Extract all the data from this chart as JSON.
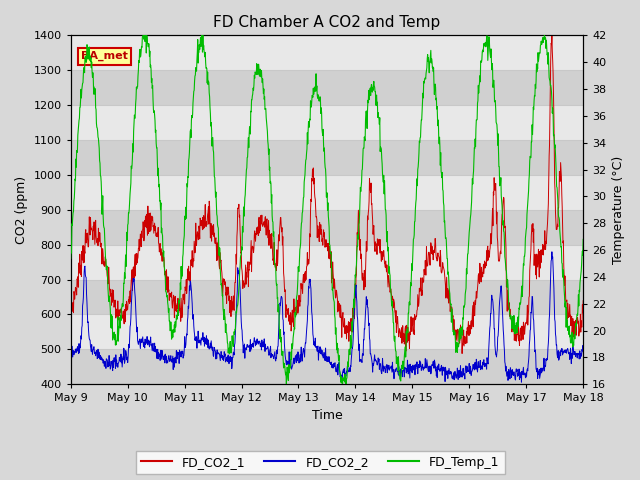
{
  "title": "FD Chamber A CO2 and Temp",
  "xlabel": "Time",
  "ylabel_left": "CO2 (ppm)",
  "ylabel_right": "Temperature (°C)",
  "ylim_left": [
    400,
    1400
  ],
  "ylim_right": [
    16,
    42
  ],
  "yticks_left": [
    400,
    500,
    600,
    700,
    800,
    900,
    1000,
    1100,
    1200,
    1300,
    1400
  ],
  "yticks_right": [
    16,
    18,
    20,
    22,
    24,
    26,
    28,
    30,
    32,
    34,
    36,
    38,
    40,
    42
  ],
  "xtick_labels": [
    "May 9",
    "May 10",
    "May 11",
    "May 12",
    "May 13",
    "May 14",
    "May 15",
    "May 16",
    "May 17",
    "May 18"
  ],
  "color_co2_1": "#cc0000",
  "color_co2_2": "#0000cc",
  "color_temp": "#00bb00",
  "fig_bg_color": "#d8d8d8",
  "plot_bg_color": "#e8e8e8",
  "band_color": "#d0d0d0",
  "grid_color": "#c8c8c8",
  "legend_label_1": "FD_CO2_1",
  "legend_label_2": "FD_CO2_2",
  "legend_label_3": "FD_Temp_1",
  "annotation_text": "BA_met",
  "annotation_bg": "#ffff99",
  "annotation_border": "#cc0000",
  "n_days": 9
}
